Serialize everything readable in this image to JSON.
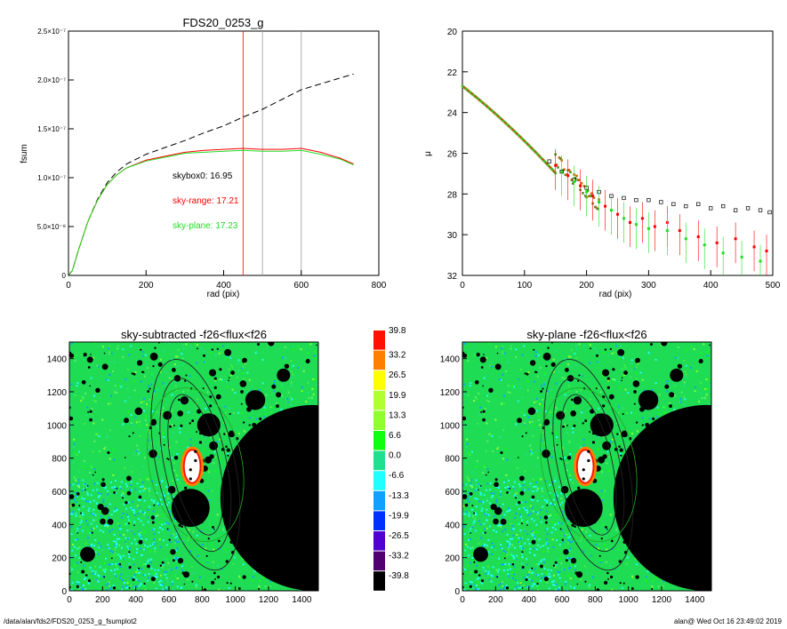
{
  "footer": {
    "path": "/data/alan/fds2/FDS20_0253_g_fsumplot2",
    "user_time": "alan@  Wed Oct 16 23:49:02 2019"
  },
  "colors": {
    "sky_box": "#000000",
    "sky_range": "#ff0000",
    "sky_plane": "#22dd22",
    "radius_line_main": "#ff0000",
    "radius_line_other": "#999999",
    "image_background": "#1fdc55",
    "masked": "#000000"
  },
  "chart_data": [
    {
      "type": "line",
      "title": "FDS20_0253_g",
      "xlabel": "rad (pix)",
      "ylabel": "fsum",
      "xlim": [
        0,
        800
      ],
      "ylim": [
        0,
        2.5e-07
      ],
      "xticks": [
        "0",
        "200",
        "400",
        "600",
        "800"
      ],
      "yticks": [
        "0",
        "5.0×10⁻⁸",
        "1.0×10⁻⁷",
        "1.5×10⁻⁷",
        "2.0×10⁻⁷",
        "2.5×10⁻⁷"
      ],
      "annotations": [
        "skybox0: 16.95",
        "sky-range: 17.21",
        "sky-plane: 17.23"
      ],
      "vlines": [
        {
          "x": 450,
          "color": "#ff0000"
        },
        {
          "x": 500,
          "color": "#999999"
        },
        {
          "x": 600,
          "color": "#999999"
        }
      ],
      "x": [
        0,
        10,
        25,
        50,
        75,
        100,
        125,
        150,
        200,
        250,
        300,
        350,
        400,
        450,
        500,
        550,
        600,
        650,
        700,
        735
      ],
      "series": [
        {
          "values": [
            0,
            5e-09,
            2.5e-08,
            5.5e-08,
            7.8e-08,
            9.5e-08,
            1.06e-07,
            1.14e-07,
            1.24e-07,
            1.31e-07,
            1.38e-07,
            1.46e-07,
            1.53e-07,
            1.62e-07,
            1.7e-07,
            1.8e-07,
            1.9e-07,
            1.96e-07,
            2.02e-07,
            2.06e-07
          ],
          "style": "dashed",
          "color": "#000000"
        },
        {
          "values": [
            0,
            5e-09,
            2.5e-08,
            5.5e-08,
            7.7e-08,
            9.3e-08,
            1.03e-07,
            1.1e-07,
            1.18e-07,
            1.22e-07,
            1.26e-07,
            1.28e-07,
            1.29e-07,
            1.3e-07,
            1.29e-07,
            1.29e-07,
            1.3e-07,
            1.26e-07,
            1.2e-07,
            1.14e-07
          ],
          "color": "#ff0000"
        },
        {
          "values": [
            0,
            5e-09,
            2.5e-08,
            5.5e-08,
            7.7e-08,
            9.3e-08,
            1.03e-07,
            1.1e-07,
            1.17e-07,
            1.21e-07,
            1.25e-07,
            1.26e-07,
            1.27e-07,
            1.28e-07,
            1.27e-07,
            1.27e-07,
            1.28e-07,
            1.24e-07,
            1.19e-07,
            1.13e-07
          ],
          "color": "#22dd22"
        }
      ]
    },
    {
      "type": "scatter",
      "title": "",
      "xlabel": "rad (pix)",
      "ylabel": "μ",
      "xlim": [
        0,
        500
      ],
      "ylim": [
        32,
        20
      ],
      "xticks": [
        "0",
        "100",
        "200",
        "300",
        "400",
        "500"
      ],
      "yticks": [
        "20",
        "22",
        "24",
        "26",
        "28",
        "30",
        "32"
      ],
      "profile_note": "mu ≈ 22.7 at r=0 rising to ≈ 28.5 at r=200; red/green points scatter to ~30.5 with error bars",
      "series": [
        {
          "name": "",
          "color": "#000000",
          "marker": "open-square",
          "x": [
            140,
            160,
            180,
            200,
            220,
            240,
            260,
            280,
            300,
            320,
            340,
            360,
            380,
            400,
            420,
            440,
            460,
            480,
            495
          ],
          "y": [
            26.4,
            26.9,
            27.3,
            27.7,
            27.9,
            28.1,
            28.2,
            28.3,
            28.3,
            28.4,
            28.5,
            28.6,
            28.5,
            28.7,
            28.6,
            28.8,
            28.7,
            28.8,
            28.9
          ]
        },
        {
          "name": "",
          "color": "#ff0000",
          "marker": "square",
          "x": [
            150,
            170,
            190,
            210,
            230,
            250,
            270,
            290,
            310,
            330,
            350,
            380,
            410,
            440,
            470,
            490
          ],
          "y": [
            26.6,
            27.1,
            27.6,
            28.1,
            28.6,
            29.0,
            29.4,
            29.2,
            29.6,
            29.4,
            29.8,
            30.1,
            30.4,
            30.2,
            30.6,
            30.8
          ]
        },
        {
          "name": "",
          "color": "#22dd22",
          "marker": "square",
          "x": [
            160,
            180,
            200,
            220,
            240,
            260,
            280,
            300,
            330,
            360,
            390,
            420,
            450,
            480
          ],
          "y": [
            26.9,
            27.4,
            27.9,
            28.4,
            28.8,
            29.2,
            29.5,
            29.7,
            29.8,
            30.2,
            30.5,
            30.9,
            31.1,
            31.3
          ]
        }
      ]
    },
    {
      "type": "heatmap",
      "title": "sky-subtracted -f26<flux<f26",
      "xlim": [
        0,
        1500
      ],
      "ylim": [
        0,
        1500
      ],
      "xticks": [
        "0",
        "200",
        "400",
        "600",
        "800",
        "1000",
        "1200",
        "1400"
      ],
      "yticks": [
        "0",
        "200",
        "400",
        "600",
        "800",
        "1000",
        "1200",
        "1400"
      ]
    },
    {
      "type": "heatmap",
      "title": "sky-plane -f26<flux<f26",
      "xlim": [
        0,
        1500
      ],
      "ylim": [
        0,
        1500
      ],
      "xticks": [
        "0",
        "200",
        "400",
        "600",
        "800",
        "1000",
        "1200",
        "1400"
      ],
      "yticks": [
        "0",
        "200",
        "400",
        "600",
        "800",
        "1000",
        "1200",
        "1400"
      ]
    }
  ],
  "colorbar": {
    "labels": [
      "39.8",
      "33.2",
      "26.5",
      "19.9",
      "13.3",
      "6.6",
      "0.0",
      "-6.6",
      "-13.3",
      "-19.9",
      "-26.5",
      "-33.2",
      "-39.8"
    ],
    "colors": [
      "#ff1000",
      "#ff8000",
      "#ffff00",
      "#b0ff30",
      "#90ff30",
      "#10ff10",
      "#20e090",
      "#20ffff",
      "#10a0ff",
      "#0030ff",
      "#5000d0",
      "#500070",
      "#000000"
    ]
  }
}
